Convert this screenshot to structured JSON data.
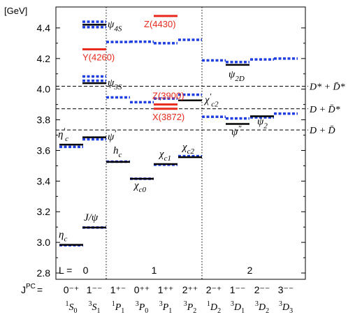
{
  "chart_data": {
    "type": "level-diagram",
    "yunit": "[GeV]",
    "ylim": [
      2.8,
      4.5
    ],
    "yticks": [
      "2.8",
      "3.0",
      "3.2",
      "3.4",
      "3.6",
      "3.8",
      "4.0",
      "4.2",
      "4.4"
    ],
    "ytick_values": [
      2.8,
      3.0,
      3.2,
      3.4,
      3.6,
      3.8,
      4.0,
      4.2,
      4.4
    ],
    "L_label": "L =",
    "L_groups": [
      {
        "label": "0",
        "columns": [
          0,
          1
        ]
      },
      {
        "label": "1",
        "columns": [
          2,
          3,
          4,
          5
        ]
      },
      {
        "label": "2",
        "columns": [
          6,
          7,
          8,
          9
        ]
      }
    ],
    "jpc_label": "J",
    "jpc_label_sup": "PC",
    "jpc_label_eq": "=",
    "columns": [
      {
        "jpc": "0⁻⁺",
        "pre": "1",
        "term": "S",
        "sub": "0"
      },
      {
        "jpc": "1⁻⁻",
        "pre": "3",
        "term": "S",
        "sub": "1"
      },
      {
        "jpc": "1⁺⁻",
        "pre": "1",
        "term": "P",
        "sub": "1"
      },
      {
        "jpc": "0⁺⁺",
        "pre": "3",
        "term": "P",
        "sub": "0"
      },
      {
        "jpc": "1⁺⁺",
        "pre": "3",
        "term": "P",
        "sub": "1"
      },
      {
        "jpc": "2⁺⁺",
        "pre": "3",
        "term": "P",
        "sub": "2"
      },
      {
        "jpc": "2⁻⁺",
        "pre": "1",
        "term": "D",
        "sub": "2"
      },
      {
        "jpc": "1⁻⁻",
        "pre": "3",
        "term": "D",
        "sub": "1"
      },
      {
        "jpc": "2⁻⁻",
        "pre": "3",
        "term": "D",
        "sub": "2"
      },
      {
        "jpc": "3⁻⁻",
        "pre": "3",
        "term": "D",
        "sub": "3"
      }
    ],
    "experimental": [
      {
        "column": 0,
        "mass": 2.984,
        "label": "η",
        "label_sub": "c",
        "label_sup": ""
      },
      {
        "column": 0,
        "mass": 3.638,
        "label": "η",
        "label_sub": "c",
        "label_sup": "′"
      },
      {
        "column": 1,
        "mass": 3.097,
        "label": "J/ψ",
        "label_sub": "",
        "label_sup": ""
      },
      {
        "column": 1,
        "mass": 3.686,
        "label": "ψ",
        "label_sub": "",
        "label_sup": "′"
      },
      {
        "column": 1,
        "mass": 4.039,
        "label": "ψ",
        "label_sub": "3S",
        "label_sup": ""
      },
      {
        "column": 1,
        "mass": 4.421,
        "label": "ψ",
        "label_sub": "4S",
        "label_sup": ""
      },
      {
        "column": 2,
        "mass": 3.525,
        "label": "h",
        "label_sub": "c",
        "label_sup": ""
      },
      {
        "column": 3,
        "mass": 3.415,
        "label": "χ",
        "label_sub": "c0",
        "label_sup": ""
      },
      {
        "column": 4,
        "mass": 3.511,
        "label": "χ",
        "label_sub": "c1",
        "label_sup": ""
      },
      {
        "column": 5,
        "mass": 3.556,
        "label": "χ",
        "label_sub": "c2",
        "label_sup": ""
      },
      {
        "column": 5,
        "mass": 3.927,
        "label": "χ",
        "label_sub": "c2",
        "label_sup": "′"
      },
      {
        "column": 7,
        "mass": 3.773,
        "label": "ψ",
        "label_sub": "",
        "label_sup": "″"
      },
      {
        "column": 7,
        "mass": 4.159,
        "label": "ψ",
        "label_sub": "2D",
        "label_sup": ""
      },
      {
        "column": 8,
        "mass": 3.823,
        "label": "ψ",
        "label_sub": "2",
        "label_sup": ""
      }
    ],
    "exotic": [
      {
        "column": 1,
        "mass": 4.26,
        "label": "Y(4260)"
      },
      {
        "column": 4,
        "mass": 4.478,
        "label": "Z(4430)"
      },
      {
        "column": 4,
        "mass": 3.9,
        "label": "Z(3900)"
      },
      {
        "column": 4,
        "mass": 3.872,
        "label": "X(3872)"
      }
    ],
    "predicted": [
      {
        "column": 0,
        "mass": 2.981
      },
      {
        "column": 0,
        "mass": 3.623
      },
      {
        "column": 1,
        "mass": 3.097
      },
      {
        "column": 1,
        "mass": 3.673
      },
      {
        "column": 1,
        "mass": 4.055
      },
      {
        "column": 1,
        "mass": 4.083
      },
      {
        "column": 1,
        "mass": 4.405
      },
      {
        "column": 1,
        "mass": 4.44
      },
      {
        "column": 2,
        "mass": 3.527
      },
      {
        "column": 2,
        "mass": 3.946
      },
      {
        "column": 2,
        "mass": 4.308
      },
      {
        "column": 3,
        "mass": 3.415
      },
      {
        "column": 3,
        "mass": 3.915
      },
      {
        "column": 3,
        "mass": 4.31
      },
      {
        "column": 4,
        "mass": 3.507
      },
      {
        "column": 4,
        "mass": 3.939
      },
      {
        "column": 4,
        "mass": 4.3
      },
      {
        "column": 5,
        "mass": 3.563
      },
      {
        "column": 5,
        "mass": 3.964
      },
      {
        "column": 5,
        "mass": 4.322
      },
      {
        "column": 6,
        "mass": 3.82
      },
      {
        "column": 6,
        "mass": 4.188
      },
      {
        "column": 7,
        "mass": 3.809
      },
      {
        "column": 7,
        "mass": 4.177
      },
      {
        "column": 8,
        "mass": 3.816
      },
      {
        "column": 8,
        "mass": 4.194
      },
      {
        "column": 9,
        "mass": 3.84
      },
      {
        "column": 9,
        "mass": 4.2
      }
    ],
    "thresholds": [
      {
        "mass": 3.734,
        "label": "D + D̄"
      },
      {
        "mass": 3.872,
        "label": "D + D̄*"
      },
      {
        "mass": 4.019,
        "label": "D* + D̄*"
      }
    ],
    "colors": {
      "experimental": "#000000",
      "predicted": "#1f3fe0",
      "exotic": "#e8291c",
      "exotic_text": "#e8291c"
    }
  }
}
